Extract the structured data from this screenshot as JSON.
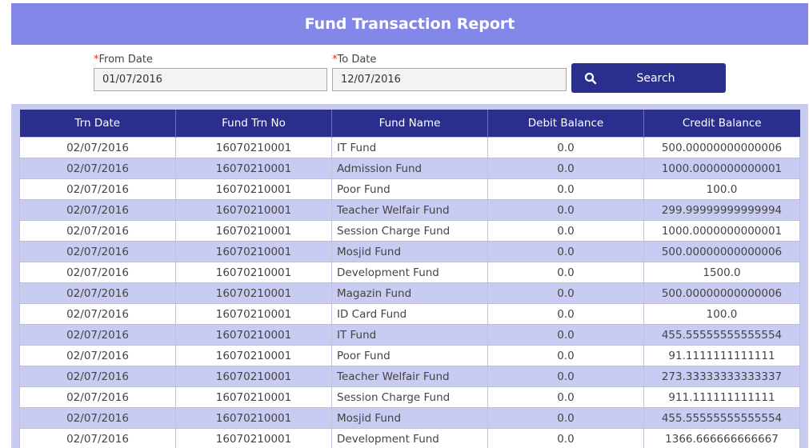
{
  "header": {
    "title": "Fund Transaction Report"
  },
  "filters": {
    "required_mark": "*",
    "from_label": "From Date",
    "from_value": "01/07/2016",
    "to_label": "To Date",
    "to_value": "12/07/2016",
    "search_label": "Search"
  },
  "table": {
    "columns": [
      "Trn Date",
      "Fund Trn No",
      "Fund Name",
      "Debit Balance",
      "Credit Balance"
    ],
    "rows": [
      [
        "02/07/2016",
        "16070210001",
        "IT Fund",
        "0.0",
        "500.00000000000006"
      ],
      [
        "02/07/2016",
        "16070210001",
        "Admission Fund",
        "0.0",
        "1000.0000000000001"
      ],
      [
        "02/07/2016",
        "16070210001",
        "Poor Fund",
        "0.0",
        "100.0"
      ],
      [
        "02/07/2016",
        "16070210001",
        "Teacher Welfair Fund",
        "0.0",
        "299.99999999999994"
      ],
      [
        "02/07/2016",
        "16070210001",
        "Session Charge Fund",
        "0.0",
        "1000.0000000000001"
      ],
      [
        "02/07/2016",
        "16070210001",
        "Mosjid Fund",
        "0.0",
        "500.00000000000006"
      ],
      [
        "02/07/2016",
        "16070210001",
        "Development Fund",
        "0.0",
        "1500.0"
      ],
      [
        "02/07/2016",
        "16070210001",
        "Magazin Fund",
        "0.0",
        "500.00000000000006"
      ],
      [
        "02/07/2016",
        "16070210001",
        "ID Card Fund",
        "0.0",
        "100.0"
      ],
      [
        "02/07/2016",
        "16070210001",
        "IT Fund",
        "0.0",
        "455.55555555555554"
      ],
      [
        "02/07/2016",
        "16070210001",
        "Poor Fund",
        "0.0",
        "91.1111111111111"
      ],
      [
        "02/07/2016",
        "16070210001",
        "Teacher Welfair Fund",
        "0.0",
        "273.33333333333337"
      ],
      [
        "02/07/2016",
        "16070210001",
        "Session Charge Fund",
        "0.0",
        "911.111111111111"
      ],
      [
        "02/07/2016",
        "16070210001",
        "Mosjid Fund",
        "0.0",
        "455.55555555555554"
      ],
      [
        "02/07/2016",
        "16070210001",
        "Development Fund",
        "0.0",
        "1366.666666666667"
      ]
    ]
  },
  "icons": {
    "search": "search-icon"
  },
  "colors": {
    "header_bg": "#8387e8",
    "primary": "#2a2f8e",
    "stripe": "#c8cbf2",
    "required": "#d9302c"
  }
}
